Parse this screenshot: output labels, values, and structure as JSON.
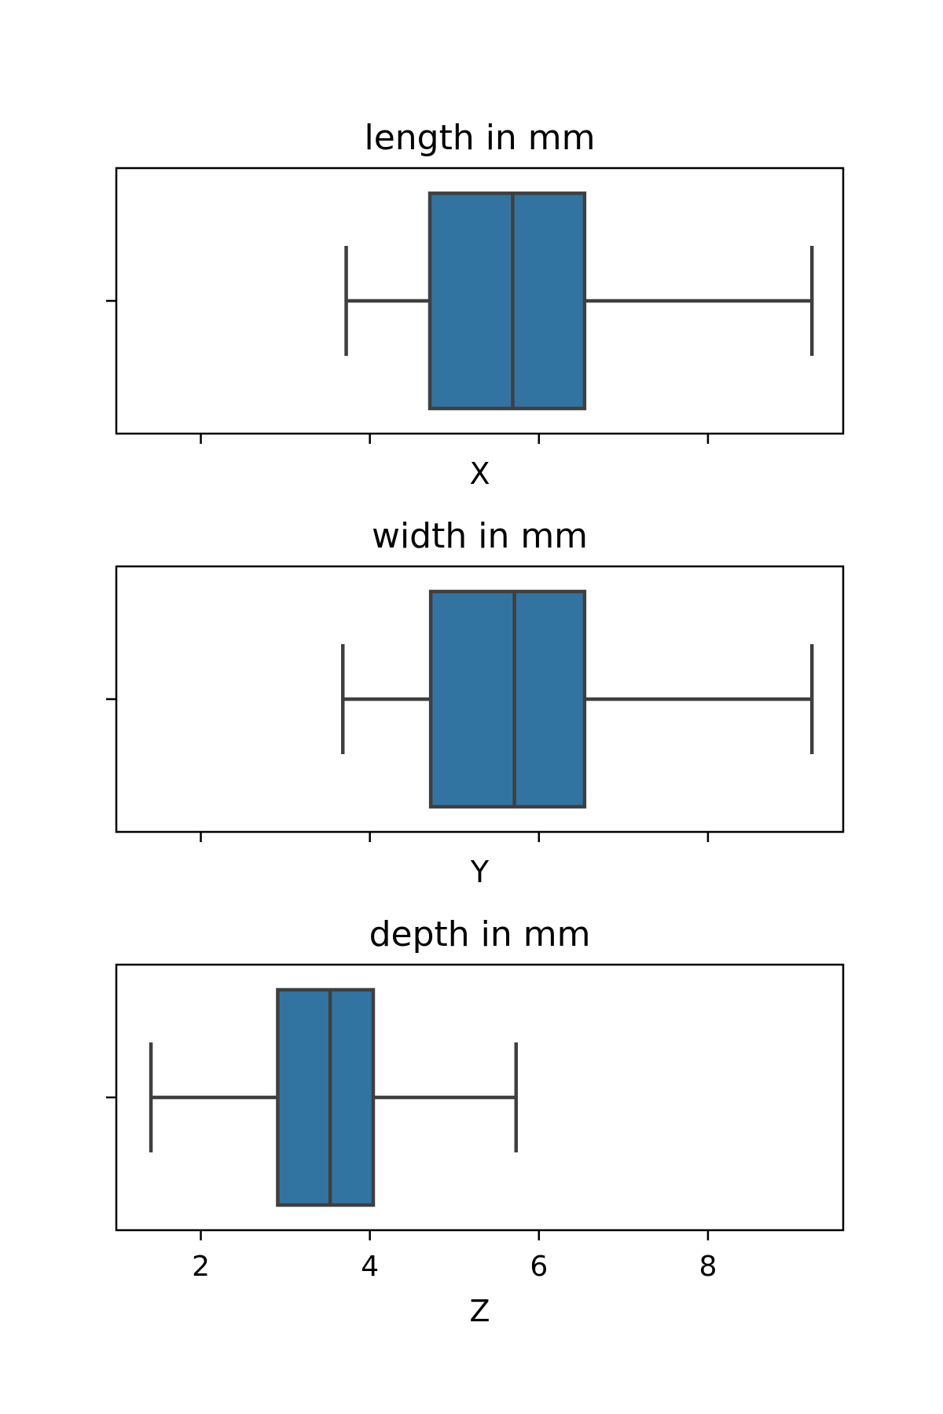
{
  "chart_data": [
    {
      "type": "box",
      "title": "length in mm",
      "xlabel": "X",
      "xlim": [
        1.0,
        9.6
      ],
      "xticks": [
        2,
        4,
        6,
        8
      ],
      "show_tick_labels": false,
      "box_color": "#3274a1",
      "line_color": "#3f3f3f",
      "stats": {
        "whislo": 3.72,
        "q1": 4.71,
        "med": 5.69,
        "q3": 6.54,
        "whishi": 9.23
      }
    },
    {
      "type": "box",
      "title": "width in mm",
      "xlabel": "Y",
      "xlim": [
        1.0,
        9.6
      ],
      "xticks": [
        2,
        4,
        6,
        8
      ],
      "show_tick_labels": false,
      "box_color": "#3274a1",
      "line_color": "#3f3f3f",
      "stats": {
        "whislo": 3.68,
        "q1": 4.72,
        "med": 5.71,
        "q3": 6.54,
        "whishi": 9.23
      }
    },
    {
      "type": "box",
      "title": "depth in mm",
      "xlabel": "Z",
      "xlim": [
        1.0,
        9.6
      ],
      "xticks": [
        2,
        4,
        6,
        8
      ],
      "show_tick_labels": true,
      "box_color": "#3274a1",
      "line_color": "#3f3f3f",
      "stats": {
        "whislo": 1.41,
        "q1": 2.91,
        "med": 3.53,
        "q3": 4.04,
        "whishi": 5.73
      }
    }
  ]
}
